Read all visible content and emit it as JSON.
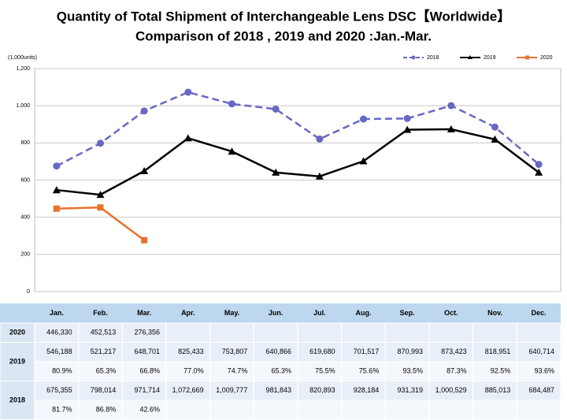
{
  "chart_data": {
    "type": "line",
    "title": "Quantity of Total Shipment of Interchangeable Lens DSC【Worldwide】",
    "subtitle": "Comparison of 2018 , 2019 and 2020 :Jan.-Mar.",
    "y_label": "(1,000units)",
    "categories": [
      "Jan.",
      "Feb.",
      "Mar.",
      "Apr.",
      "May.",
      "Jun.",
      "Jul.",
      "Aug.",
      "Sep.",
      "Oct.",
      "Nov.",
      "Dec."
    ],
    "series": [
      {
        "name": "2018",
        "color": "#6767c4",
        "marker": "circle",
        "dash": true,
        "values": [
          675.355,
          798.014,
          971.714,
          1072.669,
          1009.777,
          981.843,
          820.893,
          928.184,
          931.319,
          1000.529,
          885.013,
          684.487
        ],
        "value_labels": [
          "675,355",
          "798,014",
          "971,714",
          "1,072,669",
          "1,009,777",
          "981,843",
          "820,893",
          "928,184",
          "931,319",
          "1,000,529",
          "885,013",
          "684,487"
        ]
      },
      {
        "name": "2019",
        "color": "#000000",
        "marker": "triangle",
        "dash": false,
        "values": [
          546.188,
          521.217,
          648.701,
          825.433,
          753.807,
          640.866,
          619.68,
          701.517,
          870.993,
          873.423,
          818.951,
          640.714
        ],
        "value_labels": [
          "546,188",
          "521,217",
          "648,701",
          "825,433",
          "753,807",
          "640,866",
          "619,680",
          "701,517",
          "870,993",
          "873,423",
          "818,951",
          "640,714"
        ]
      },
      {
        "name": "2020",
        "color": "#e8722c",
        "marker": "square",
        "dash": false,
        "values": [
          446.33,
          452.513,
          276.356,
          null,
          null,
          null,
          null,
          null,
          null,
          null,
          null,
          null
        ],
        "value_labels": [
          "446,330",
          "452,513",
          "276,356",
          null,
          null,
          null,
          null,
          null,
          null,
          null,
          null,
          null
        ]
      }
    ],
    "ylim": [
      0,
      1200
    ],
    "yticks": [
      0,
      200,
      400,
      600,
      800,
      {
        "value": 1000,
        "label": "1,000"
      },
      {
        "value": 1200,
        "label": "1,200"
      }
    ],
    "grid": true,
    "legend": "top-right"
  },
  "table": {
    "ratios": [
      [
        "81.7%",
        "86.8%",
        "42.6%",
        null,
        null,
        null,
        null,
        null,
        null,
        null,
        null,
        null
      ],
      [
        "80.9%",
        "65.3%",
        "66.8%",
        "77.0%",
        "74.7%",
        "65.3%",
        "75.5%",
        "75.6%",
        "93.5%",
        "87.3%",
        "92.5%",
        "93.6%"
      ],
      null
    ]
  }
}
